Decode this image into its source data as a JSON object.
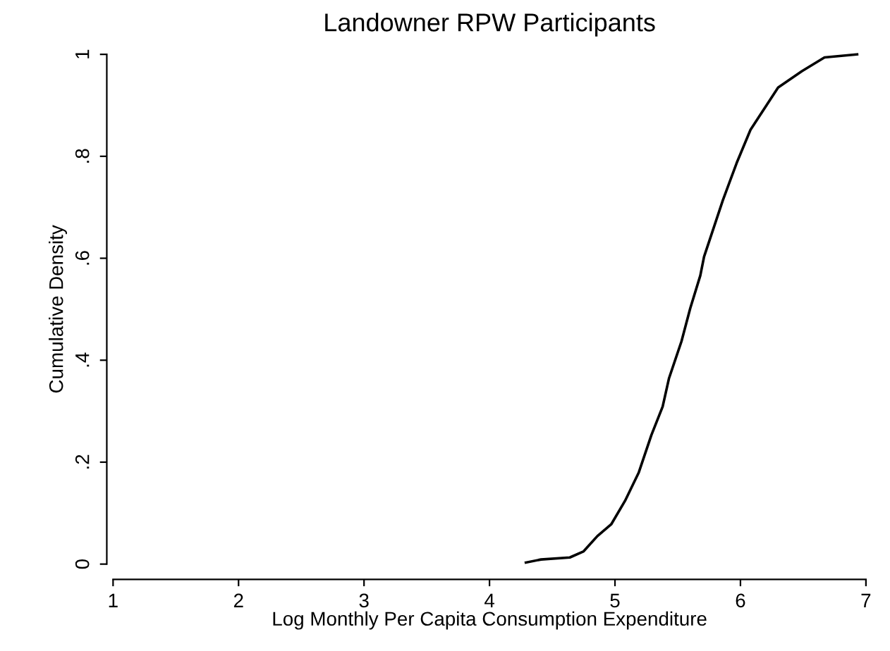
{
  "chart_data": {
    "type": "line",
    "title": "Landowner RPW Participants",
    "xlabel": "Log Monthly Per Capita Consumption Expenditure",
    "ylabel": "Cumulative Density",
    "x": [
      4.29,
      4.41,
      4.64,
      4.75,
      4.86,
      4.97,
      5.08,
      5.19,
      5.29,
      5.38,
      5.43,
      5.53,
      5.6,
      5.68,
      5.71,
      5.86,
      5.97,
      6.08,
      6.3,
      6.49,
      6.67,
      6.93
    ],
    "series": [
      {
        "color": "#000000",
        "values": [
          0.003,
          0.009,
          0.013,
          0.025,
          0.055,
          0.078,
          0.124,
          0.18,
          0.253,
          0.309,
          0.364,
          0.437,
          0.502,
          0.566,
          0.603,
          0.714,
          0.787,
          0.852,
          0.935,
          0.967,
          0.994,
          1.0
        ]
      }
    ],
    "xlim": [
      1,
      7
    ],
    "xticks": [
      1,
      2,
      3,
      4,
      5,
      6,
      7
    ],
    "ylim": [
      0,
      1
    ],
    "yticks": [
      0,
      {
        "value": 0.2,
        "label": ".2"
      },
      {
        "value": 0.4,
        "label": ".4"
      },
      {
        "value": 0.6,
        "label": ".6"
      },
      {
        "value": 0.8,
        "label": ".8"
      },
      1
    ],
    "grid": false,
    "legend": false,
    "marker": "none",
    "line_style": "solid"
  }
}
